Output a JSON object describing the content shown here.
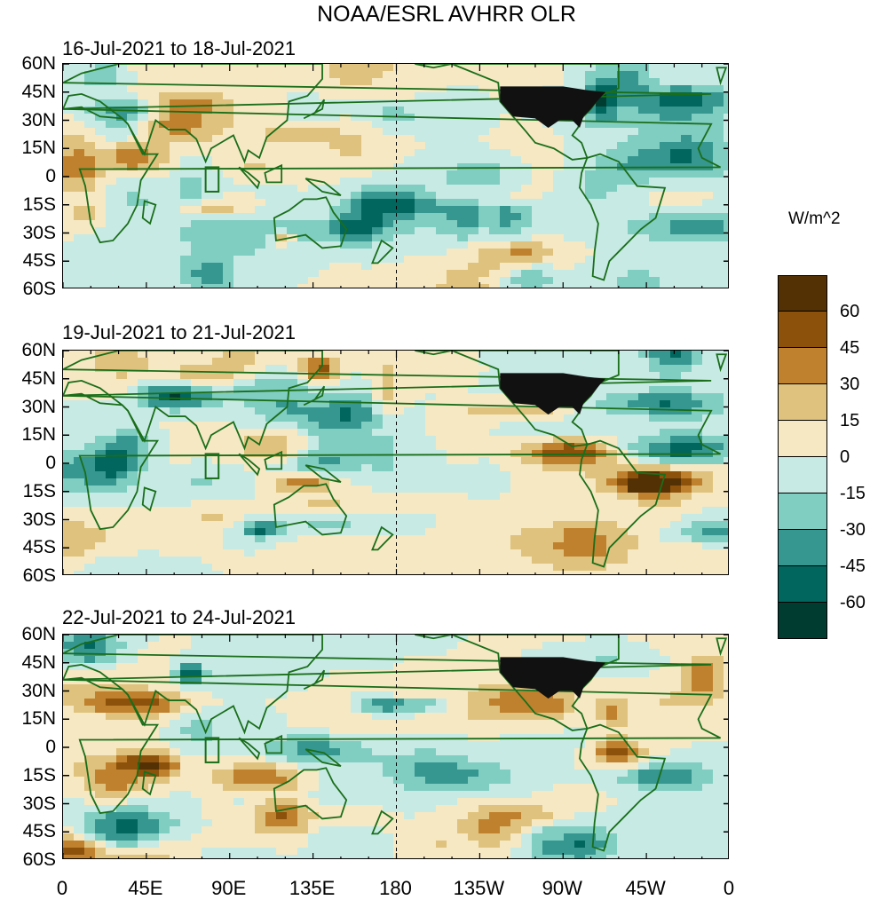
{
  "title": "NOAA/ESRL AVHRR OLR",
  "panels": [
    {
      "subtitle": "16-Jul-2021 to 18-Jul-2021",
      "seed": 3
    },
    {
      "subtitle": "19-Jul-2021 to 21-Jul-2021",
      "seed": 7
    },
    {
      "subtitle": "22-Jul-2021 to 24-Jul-2021",
      "seed": 11
    }
  ],
  "lat_labels": [
    "60N",
    "45N",
    "30N",
    "15N",
    "0",
    "15S",
    "30S",
    "45S",
    "60S"
  ],
  "lon_labels": [
    "0",
    "45E",
    "90E",
    "135E",
    "180",
    "135W",
    "90W",
    "45W",
    "0"
  ],
  "colorbar": {
    "units": "W/m^2",
    "labels": [
      "60",
      "45",
      "30",
      "15",
      "0",
      "-15",
      "-30",
      "-45",
      "-60"
    ],
    "colors": [
      "#543005",
      "#8c510a",
      "#bf812d",
      "#dfc27d",
      "#f6e8c3",
      "#c7eae5",
      "#80cdc1",
      "#35978f",
      "#01665e",
      "#003c30"
    ]
  },
  "map_colors": {
    "coast": "#1a6e1a",
    "land_mask": "#111111"
  }
}
